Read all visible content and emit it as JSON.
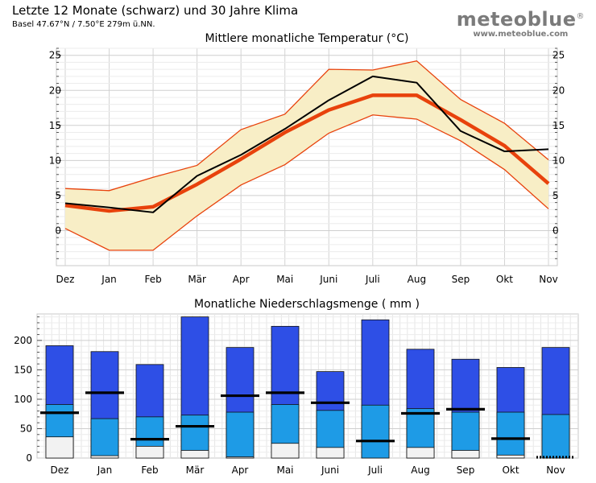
{
  "header": {
    "title": "Letzte 12 Monate (schwarz) und 30 Jahre Klima",
    "location": "Basel 47.67°N / 7.50°E   279m ü.NN."
  },
  "brand": {
    "name": "meteoblue",
    "mark": "®",
    "url": "www.meteoblue.com"
  },
  "colors": {
    "band_fill": "#f8eec6",
    "band_edge": "#e8420c",
    "mean_line": "#e8420c",
    "last12_line": "#000000",
    "precip_dark": "#2e4fe6",
    "precip_mid": "#1e9be6",
    "precip_light": "#f2f2f2",
    "grid": "#d3d3d3"
  },
  "chart_data": [
    {
      "type": "line",
      "title": "Mittlere monatliche Temperatur (°C)",
      "categories": [
        "Dez",
        "Jan",
        "Feb",
        "Mär",
        "Apr",
        "Mai",
        "Juni",
        "Juli",
        "Aug",
        "Sep",
        "Okt",
        "Nov"
      ],
      "ylim": [
        -5,
        26
      ],
      "yticks": [
        0,
        5,
        10,
        15,
        20,
        25
      ],
      "grid": true,
      "series": [
        {
          "name": "",
          "role": "band_high",
          "values": [
            6.0,
            5.7,
            7.6,
            9.3,
            14.4,
            16.6,
            23.0,
            22.9,
            24.2,
            18.7,
            15.3,
            10.1
          ]
        },
        {
          "name": "",
          "role": "band_low",
          "values": [
            0.3,
            -2.8,
            -2.8,
            2.1,
            6.5,
            9.4,
            13.9,
            16.5,
            15.9,
            12.8,
            8.7,
            3.1
          ]
        },
        {
          "name": "",
          "role": "mean",
          "values": [
            3.6,
            2.8,
            3.4,
            6.6,
            10.2,
            14.0,
            17.2,
            19.3,
            19.3,
            15.8,
            12.1,
            6.7
          ]
        },
        {
          "name": "",
          "role": "last12",
          "values": [
            3.9,
            3.3,
            2.6,
            7.8,
            10.8,
            14.5,
            18.6,
            22.0,
            21.1,
            14.2,
            11.3,
            11.6
          ]
        }
      ]
    },
    {
      "type": "bar",
      "title": "Monatliche Niederschlagsmenge ( mm )",
      "categories": [
        "Dez",
        "Jan",
        "Feb",
        "Mär",
        "Apr",
        "Mai",
        "Juni",
        "Juli",
        "Aug",
        "Sep",
        "Okt",
        "Nov"
      ],
      "ylim": [
        0,
        245
      ],
      "yticks": [
        0,
        50,
        100,
        150,
        200
      ],
      "grid": true,
      "series": [
        {
          "name": "",
          "role": "top",
          "values": [
            191,
            181,
            159,
            240,
            188,
            224,
            147,
            235,
            185,
            168,
            154,
            188
          ]
        },
        {
          "name": "",
          "role": "mid",
          "values": [
            91,
            67,
            70,
            73,
            78,
            91,
            81,
            90,
            84,
            78,
            78,
            74
          ]
        },
        {
          "name": "",
          "role": "low",
          "values": [
            36,
            4,
            20,
            13,
            2,
            25,
            18,
            0,
            18,
            13,
            5,
            0
          ]
        },
        {
          "name": "",
          "role": "last12",
          "values": [
            77,
            111,
            32,
            54,
            106,
            111,
            94,
            29,
            76,
            83,
            33,
            0
          ]
        }
      ]
    }
  ]
}
